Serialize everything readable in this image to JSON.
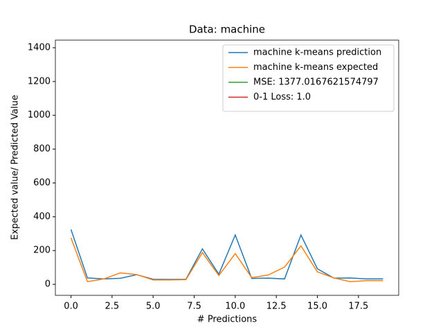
{
  "chart_data": {
    "type": "line",
    "title": "Data: machine",
    "xlabel": "# Predictions",
    "ylabel": "Expected value/ Predicted Value",
    "x": [
      0,
      1,
      2,
      3,
      4,
      5,
      6,
      7,
      8,
      9,
      10,
      11,
      12,
      13,
      14,
      15,
      16,
      17,
      18,
      19
    ],
    "series": [
      {
        "name": "machine k-means prediction",
        "color": "#1f77b4",
        "values": [
          325,
          38,
          32,
          36,
          57,
          30,
          29,
          30,
          210,
          60,
          292,
          35,
          37,
          32,
          292,
          92,
          37,
          38,
          32,
          32
        ]
      },
      {
        "name": "machine k-means expected",
        "color": "#ff7f0e",
        "values": [
          275,
          16,
          32,
          68,
          58,
          26,
          26,
          28,
          188,
          52,
          182,
          40,
          55,
          102,
          228,
          74,
          38,
          16,
          22,
          22
        ]
      }
    ],
    "legend_only": [
      {
        "name": "MSE: 1377.0167621574797",
        "color": "#2ca02c"
      },
      {
        "name": "0-1 Loss: 1.0",
        "color": "#d62728"
      }
    ],
    "legend": "upper right",
    "xlim": [
      -0.95,
      19.95
    ],
    "xticks": [
      {
        "value": 0,
        "label": "0.0"
      },
      {
        "value": 2.5,
        "label": "2.5"
      },
      {
        "value": 5,
        "label": "5.0"
      },
      {
        "value": 7.5,
        "label": "7.5"
      },
      {
        "value": 10,
        "label": "10.0"
      },
      {
        "value": 12.5,
        "label": "12.5"
      },
      {
        "value": 15,
        "label": "15.0"
      },
      {
        "value": 17.5,
        "label": "17.5"
      }
    ],
    "ylim": [
      -65,
      1445
    ],
    "yticks": [
      0,
      200,
      400,
      600,
      800,
      1000,
      1200,
      1400
    ]
  }
}
